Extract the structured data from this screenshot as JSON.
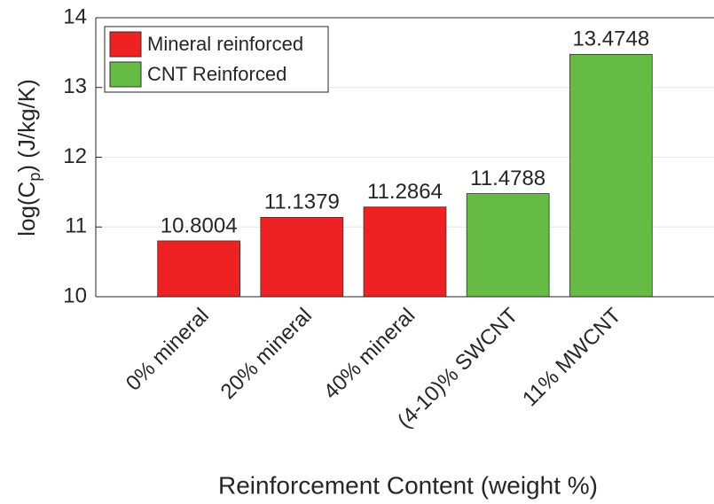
{
  "chart_data": {
    "type": "bar",
    "categories": [
      "0% mineral",
      "20% mineral",
      "40% mineral",
      "(4-10)% SWCNT",
      "11% MWCNT"
    ],
    "series": [
      {
        "name": "Mineral reinforced",
        "color": "#ee2222",
        "values": [
          10.8004,
          11.1379,
          11.2864,
          null,
          null
        ]
      },
      {
        "name": "CNT Reinforced",
        "color": "#66bb44",
        "values": [
          null,
          null,
          null,
          11.4788,
          13.4748
        ]
      }
    ],
    "xlabel": "Reinforcement Content (weight %)",
    "ylabel": [
      "log(C",
      "p",
      ") (J/kg/K)"
    ],
    "ylim": [
      10,
      14
    ],
    "yticks": [
      10,
      11,
      12,
      13,
      14
    ],
    "grid": true,
    "legend": "upper left"
  }
}
